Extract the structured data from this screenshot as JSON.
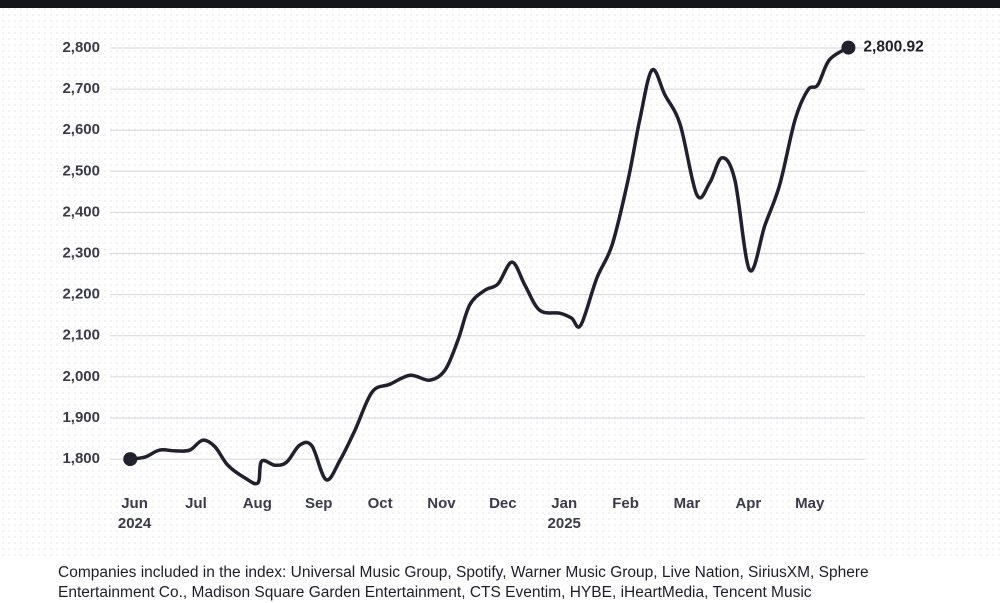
{
  "chart_data": {
    "type": "line",
    "x": [
      -0.07,
      0.17,
      0.41,
      0.66,
      0.9,
      1.11,
      1.31,
      1.52,
      1.8,
      2.01,
      2.07,
      2.29,
      2.48,
      2.69,
      2.89,
      3.12,
      3.35,
      3.59,
      3.87,
      4.16,
      4.49,
      4.81,
      5.06,
      5.27,
      5.46,
      5.71,
      5.92,
      6.15,
      6.36,
      6.6,
      6.93,
      7.12,
      7.27,
      7.53,
      7.78,
      8.04,
      8.23,
      8.43,
      8.64,
      8.89,
      9.16,
      9.37,
      9.57,
      9.78,
      10.02,
      10.27,
      10.51,
      10.76,
      10.97,
      11.13,
      11.32,
      11.63
    ],
    "series": [
      {
        "color": "#20202e",
        "values": [
          1800,
          1805,
          1822,
          1820,
          1822,
          1846,
          1830,
          1785,
          1754,
          1742,
          1795,
          1785,
          1793,
          1834,
          1832,
          1750,
          1798,
          1870,
          1963,
          1982,
          2004,
          1992,
          2017,
          2090,
          2175,
          2211,
          2226,
          2279,
          2223,
          2162,
          2155,
          2143,
          2126,
          2240,
          2321,
          2479,
          2625,
          2746,
          2686,
          2613,
          2443,
          2472,
          2533,
          2479,
          2260,
          2369,
          2467,
          2625,
          2698,
          2710,
          2771,
          2800.92
        ]
      }
    ],
    "annotations": [
      {
        "x": 11.63,
        "y": 2800.92,
        "label": "2,800.92"
      }
    ],
    "xlim": [
      -0.4,
      11.9
    ],
    "xticks": [
      {
        "value": 0,
        "label": "Jun"
      },
      {
        "value": 1,
        "label": "Jul"
      },
      {
        "value": 2,
        "label": "Aug"
      },
      {
        "value": 3,
        "label": "Sep"
      },
      {
        "value": 4,
        "label": "Oct"
      },
      {
        "value": 5,
        "label": "Nov"
      },
      {
        "value": 6,
        "label": "Dec"
      },
      {
        "value": 7,
        "label": "Jan"
      },
      {
        "value": 8,
        "label": "Feb"
      },
      {
        "value": 9,
        "label": "Mar"
      },
      {
        "value": 10,
        "label": "Apr"
      },
      {
        "value": 11,
        "label": "May"
      }
    ],
    "year_labels": [
      {
        "value": 0,
        "label": "2024"
      },
      {
        "value": 7,
        "label": "2025"
      }
    ],
    "ylim": [
      1720,
      2868
    ],
    "yticks": [
      {
        "value": 1800,
        "label": "1,800"
      },
      {
        "value": 1900,
        "label": "1,900"
      },
      {
        "value": 2000,
        "label": "2,000"
      },
      {
        "value": 2100,
        "label": "2,100"
      },
      {
        "value": 2200,
        "label": "2,200"
      },
      {
        "value": 2300,
        "label": "2,300"
      },
      {
        "value": 2400,
        "label": "2,400"
      },
      {
        "value": 2500,
        "label": "2,500"
      },
      {
        "value": 2600,
        "label": "2,600"
      },
      {
        "value": 2700,
        "label": "2,700"
      },
      {
        "value": 2800,
        "label": "2,800"
      }
    ],
    "grid": true,
    "note": "Companies included in the index: Universal Music Group, Spotify, Warner Music Group, Live Nation, SiriusXM, Sphere Entertainment Co., Madison Square Garden Entertainment, CTS Eventim, HYBE, iHeartMedia, Tencent Music"
  }
}
